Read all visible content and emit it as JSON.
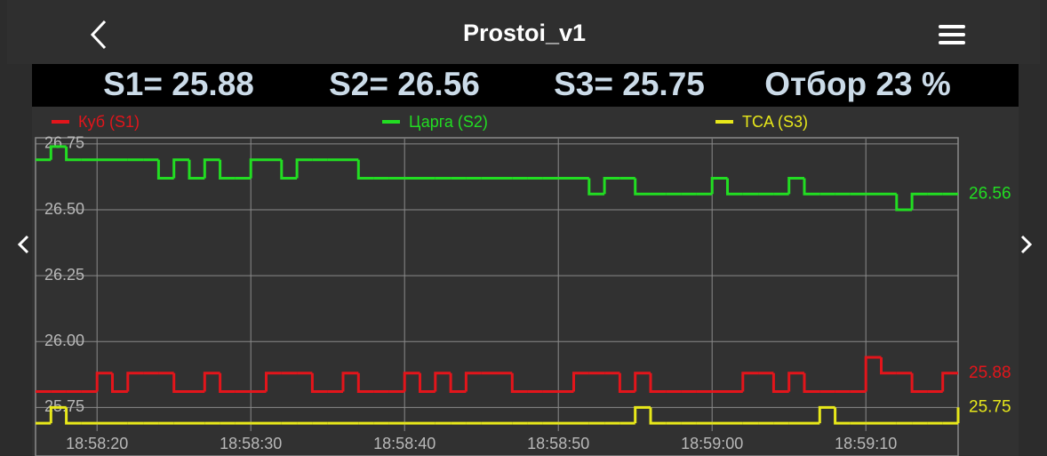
{
  "header": {
    "title": "Prostoi_v1",
    "readout": [
      "S1= 25.88",
      "S2= 26.56",
      "S3= 25.75",
      "Отбор 23 %"
    ]
  },
  "chart_data": {
    "type": "line",
    "drawstyle": "steps-post",
    "grid": true,
    "legend": "top",
    "x": [
      "18:58:16",
      "18:58:17",
      "18:58:18",
      "18:58:19",
      "18:58:20",
      "18:58:21",
      "18:58:22",
      "18:58:23",
      "18:58:24",
      "18:58:25",
      "18:58:26",
      "18:58:27",
      "18:58:28",
      "18:58:29",
      "18:58:30",
      "18:58:31",
      "18:58:32",
      "18:58:33",
      "18:58:34",
      "18:58:35",
      "18:58:36",
      "18:58:37",
      "18:58:38",
      "18:58:39",
      "18:58:40",
      "18:58:41",
      "18:58:42",
      "18:58:43",
      "18:58:44",
      "18:58:45",
      "18:58:46",
      "18:58:47",
      "18:58:48",
      "18:58:49",
      "18:58:50",
      "18:58:51",
      "18:58:52",
      "18:58:53",
      "18:58:54",
      "18:58:55",
      "18:58:56",
      "18:58:57",
      "18:58:58",
      "18:58:59",
      "18:59:00",
      "18:59:01",
      "18:59:02",
      "18:59:03",
      "18:59:04",
      "18:59:05",
      "18:59:06",
      "18:59:07",
      "18:59:08",
      "18:59:09",
      "18:59:10",
      "18:59:11",
      "18:59:12",
      "18:59:13",
      "18:59:14",
      "18:59:15",
      "18:59:16"
    ],
    "xlim": [
      "18:58:16",
      "18:59:16"
    ],
    "xticks": [
      "18:58:20",
      "18:58:30",
      "18:58:40",
      "18:58:50",
      "18:59:00",
      "18:59:10"
    ],
    "ylim": [
      25.66,
      26.77
    ],
    "yticks": [
      {
        "value": 25.75,
        "label": "25.75"
      },
      {
        "value": 26,
        "label": "26.00"
      },
      {
        "value": 26.25,
        "label": "26.25"
      },
      {
        "value": 26.5,
        "label": "26.50"
      },
      {
        "value": 26.75,
        "label": "26.75"
      }
    ],
    "series": [
      {
        "name": "Куб (S1)",
        "color": "#e3151b",
        "values": [
          25.81,
          25.81,
          25.81,
          25.81,
          25.88,
          25.81,
          25.88,
          25.88,
          25.88,
          25.81,
          25.81,
          25.88,
          25.81,
          25.81,
          25.81,
          25.88,
          25.88,
          25.88,
          25.81,
          25.81,
          25.88,
          25.81,
          25.81,
          25.81,
          25.88,
          25.81,
          25.88,
          25.81,
          25.88,
          25.88,
          25.88,
          25.81,
          25.81,
          25.81,
          25.81,
          25.88,
          25.88,
          25.88,
          25.81,
          25.88,
          25.81,
          25.81,
          25.81,
          25.81,
          25.81,
          25.81,
          25.88,
          25.88,
          25.81,
          25.88,
          25.81,
          25.81,
          25.81,
          25.81,
          25.94,
          25.88,
          25.88,
          25.81,
          25.81,
          25.88,
          25.88
        ]
      },
      {
        "name": "Царга (S2)",
        "color": "#22dd22",
        "values": [
          26.69,
          26.74,
          26.69,
          26.69,
          26.69,
          26.69,
          26.69,
          26.69,
          26.62,
          26.69,
          26.62,
          26.69,
          26.62,
          26.62,
          26.69,
          26.69,
          26.62,
          26.69,
          26.69,
          26.69,
          26.69,
          26.62,
          26.62,
          26.62,
          26.62,
          26.62,
          26.62,
          26.62,
          26.62,
          26.62,
          26.62,
          26.62,
          26.62,
          26.62,
          26.62,
          26.62,
          26.56,
          26.62,
          26.62,
          26.56,
          26.56,
          26.56,
          26.56,
          26.56,
          26.62,
          26.56,
          26.56,
          26.56,
          26.56,
          26.62,
          26.56,
          26.56,
          26.56,
          26.56,
          26.56,
          26.56,
          26.5,
          26.56,
          26.56,
          26.56,
          26.56
        ]
      },
      {
        "name": "TCA (S3)",
        "color": "#e8e81a",
        "values": [
          25.69,
          25.75,
          25.69,
          25.69,
          25.69,
          25.69,
          25.69,
          25.69,
          25.69,
          25.69,
          25.69,
          25.69,
          25.69,
          25.69,
          25.69,
          25.69,
          25.69,
          25.69,
          25.69,
          25.69,
          25.69,
          25.69,
          25.69,
          25.69,
          25.69,
          25.69,
          25.69,
          25.69,
          25.69,
          25.69,
          25.69,
          25.69,
          25.69,
          25.69,
          25.69,
          25.69,
          25.69,
          25.69,
          25.69,
          25.75,
          25.69,
          25.69,
          25.69,
          25.69,
          25.69,
          25.69,
          25.69,
          25.69,
          25.69,
          25.69,
          25.69,
          25.75,
          25.69,
          25.69,
          25.69,
          25.69,
          25.69,
          25.69,
          25.69,
          25.69,
          25.75
        ]
      }
    ]
  }
}
